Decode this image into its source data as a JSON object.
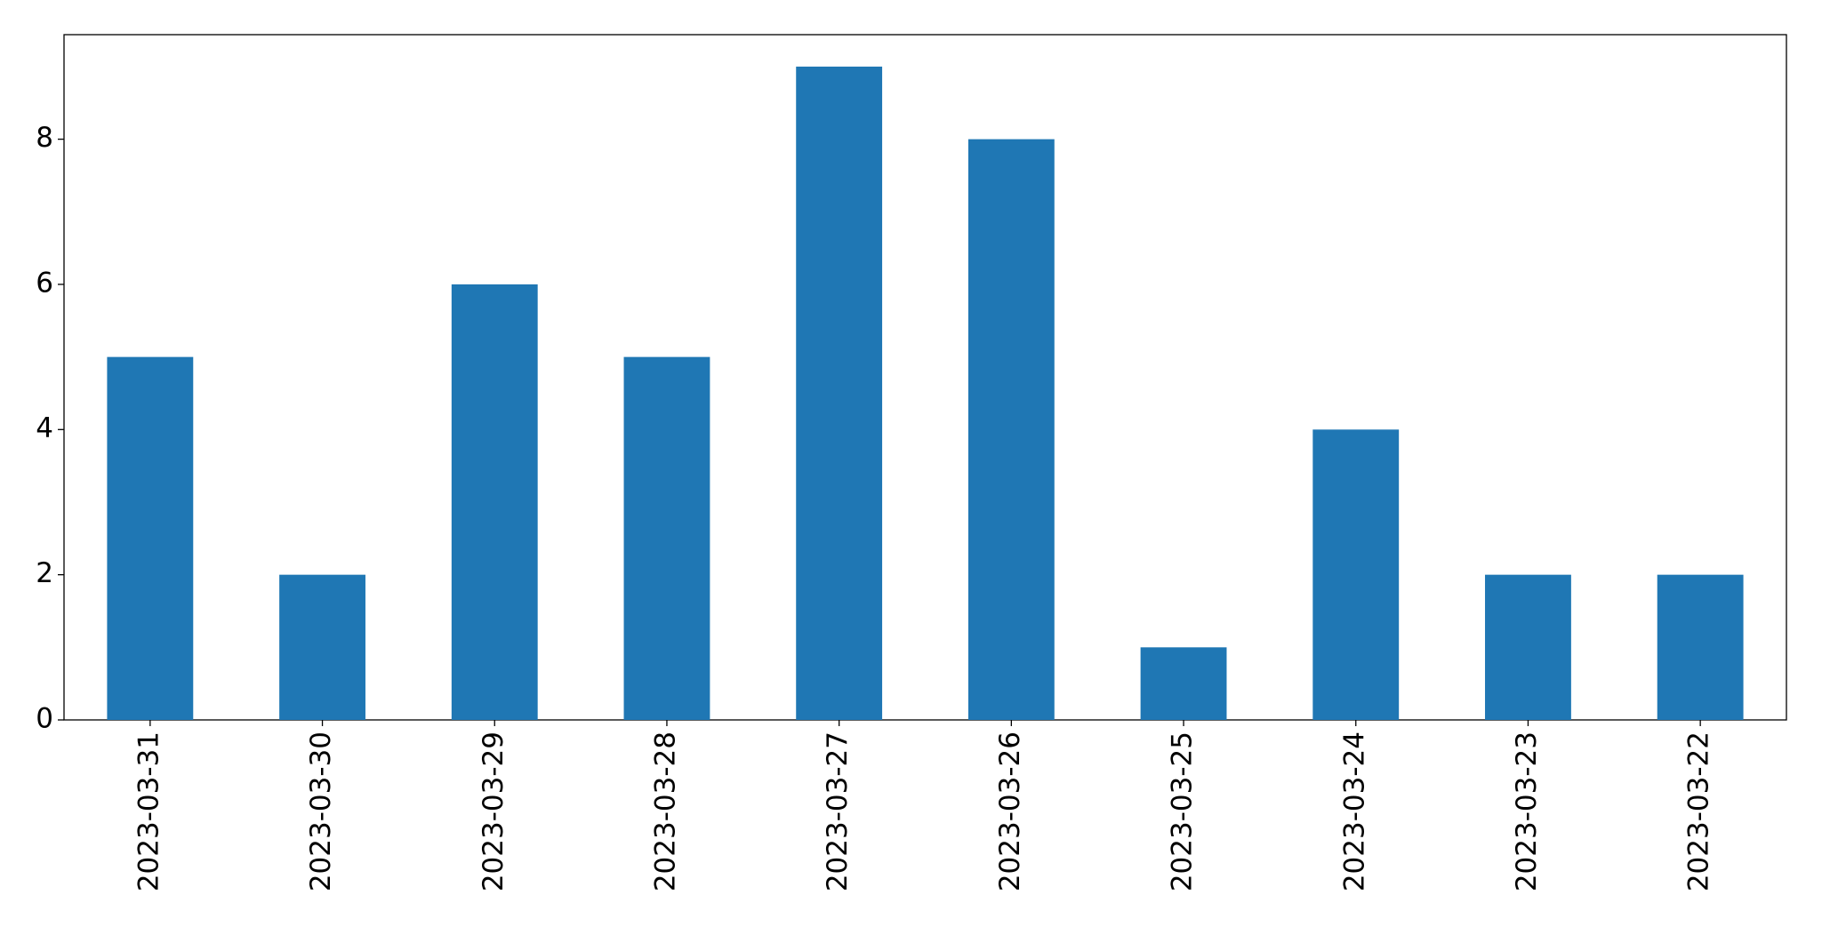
{
  "chart_data": {
    "type": "bar",
    "categories": [
      "2023-03-31",
      "2023-03-30",
      "2023-03-29",
      "2023-03-28",
      "2023-03-27",
      "2023-03-26",
      "2023-03-25",
      "2023-03-24",
      "2023-03-23",
      "2023-03-22"
    ],
    "values": [
      5,
      2,
      6,
      5,
      9,
      8,
      1,
      4,
      2,
      2
    ],
    "color": "#1f77b4",
    "ylim": [
      0,
      9.44
    ],
    "yticks": [
      0,
      2,
      4,
      6,
      8
    ],
    "grid": false
  }
}
